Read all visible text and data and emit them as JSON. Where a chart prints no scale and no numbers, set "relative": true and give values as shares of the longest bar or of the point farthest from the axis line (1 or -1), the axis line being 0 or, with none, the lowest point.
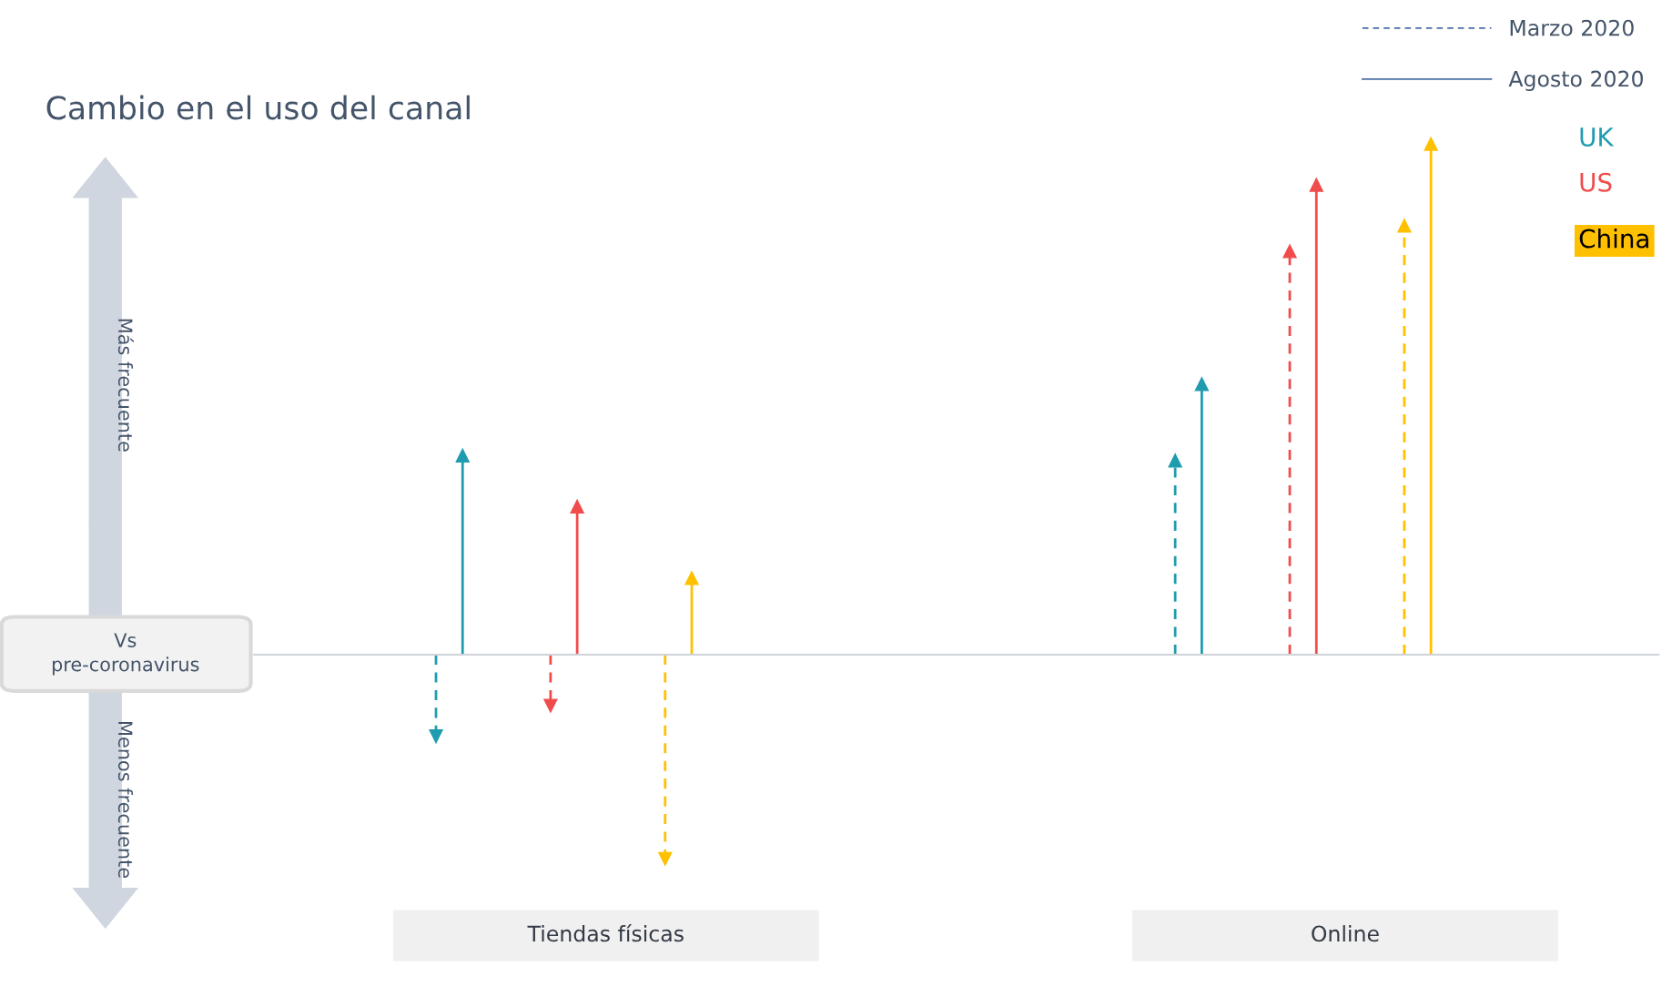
{
  "chart_data": {
    "type": "lollipop",
    "marker": "triangle",
    "relative": true,
    "title": "Cambio en el uso del canal",
    "categories": [
      "Tiendas físicas",
      "Online"
    ],
    "legend": "top right",
    "series": [
      {
        "color": "#1f9cb0",
        "line_style": "dashed",
        "values": [
          -0.16,
          0.38
        ]
      },
      {
        "name": "UK",
        "color": "#1f9cb0",
        "line_style": "solid",
        "values": [
          0.39,
          0.53
        ]
      },
      {
        "color": "#f04c4c",
        "line_style": "dashed",
        "values": [
          -0.1,
          0.79
        ]
      },
      {
        "name": "US",
        "color": "#f04c4c",
        "line_style": "solid",
        "values": [
          0.29,
          0.92
        ]
      },
      {
        "color": "#ffc000",
        "line_style": "dashed",
        "values": [
          -0.4,
          0.84
        ]
      },
      {
        "name": "China",
        "color": "#ffc000",
        "line_style": "solid",
        "values": [
          0.15,
          1.0
        ]
      }
    ],
    "annotations": [
      "Más frecuente",
      "Vs\npre-coronavirus",
      "Menos frecuente",
      "Marzo 2020",
      "Agosto 2020"
    ]
  }
}
